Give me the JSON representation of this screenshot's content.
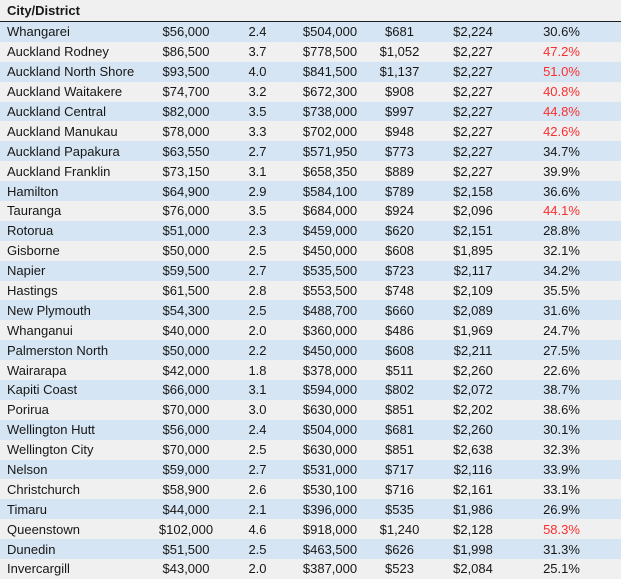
{
  "colors": {
    "band_blue": "#d6e5f3",
    "band_gray": "#f0f0f0",
    "text": "#171717",
    "red_percent": "#fb2e2e",
    "header_border": "#1f1f1f"
  },
  "table": {
    "header_label": "City/District",
    "rows": [
      {
        "city": "Whangarei",
        "values": [
          "$56,000",
          "2.4",
          "$504,000",
          "$681",
          "$2,224"
        ],
        "percent": "30.6%",
        "percent_red": false
      },
      {
        "city": "Auckland Rodney",
        "values": [
          "$86,500",
          "3.7",
          "$778,500",
          "$1,052",
          "$2,227"
        ],
        "percent": "47.2%",
        "percent_red": true
      },
      {
        "city": "Auckland North Shore",
        "values": [
          "$93,500",
          "4.0",
          "$841,500",
          "$1,137",
          "$2,227"
        ],
        "percent": "51.0%",
        "percent_red": true
      },
      {
        "city": "Auckland Waitakere",
        "values": [
          "$74,700",
          "3.2",
          "$672,300",
          "$908",
          "$2,227"
        ],
        "percent": "40.8%",
        "percent_red": true
      },
      {
        "city": "Auckland Central",
        "values": [
          "$82,000",
          "3.5",
          "$738,000",
          "$997",
          "$2,227"
        ],
        "percent": "44.8%",
        "percent_red": true
      },
      {
        "city": "Auckland Manukau",
        "values": [
          "$78,000",
          "3.3",
          "$702,000",
          "$948",
          "$2,227"
        ],
        "percent": "42.6%",
        "percent_red": true
      },
      {
        "city": "Auckland Papakura",
        "values": [
          "$63,550",
          "2.7",
          "$571,950",
          "$773",
          "$2,227"
        ],
        "percent": "34.7%",
        "percent_red": false
      },
      {
        "city": "Auckland Franklin",
        "values": [
          "$73,150",
          "3.1",
          "$658,350",
          "$889",
          "$2,227"
        ],
        "percent": "39.9%",
        "percent_red": false
      },
      {
        "city": "Hamilton",
        "values": [
          "$64,900",
          "2.9",
          "$584,100",
          "$789",
          "$2,158"
        ],
        "percent": "36.6%",
        "percent_red": false
      },
      {
        "city": "Tauranga",
        "values": [
          "$76,000",
          "3.5",
          "$684,000",
          "$924",
          "$2,096"
        ],
        "percent": "44.1%",
        "percent_red": true
      },
      {
        "city": "Rotorua",
        "values": [
          "$51,000",
          "2.3",
          "$459,000",
          "$620",
          "$2,151"
        ],
        "percent": "28.8%",
        "percent_red": false
      },
      {
        "city": "Gisborne",
        "values": [
          "$50,000",
          "2.5",
          "$450,000",
          "$608",
          "$1,895"
        ],
        "percent": "32.1%",
        "percent_red": false
      },
      {
        "city": "Napier",
        "values": [
          "$59,500",
          "2.7",
          "$535,500",
          "$723",
          "$2,117"
        ],
        "percent": "34.2%",
        "percent_red": false
      },
      {
        "city": "Hastings",
        "values": [
          "$61,500",
          "2.8",
          "$553,500",
          "$748",
          "$2,109"
        ],
        "percent": "35.5%",
        "percent_red": false
      },
      {
        "city": "New Plymouth",
        "values": [
          "$54,300",
          "2.5",
          "$488,700",
          "$660",
          "$2,089"
        ],
        "percent": "31.6%",
        "percent_red": false
      },
      {
        "city": "Whanganui",
        "values": [
          "$40,000",
          "2.0",
          "$360,000",
          "$486",
          "$1,969"
        ],
        "percent": "24.7%",
        "percent_red": false
      },
      {
        "city": "Palmerston North",
        "values": [
          "$50,000",
          "2.2",
          "$450,000",
          "$608",
          "$2,211"
        ],
        "percent": "27.5%",
        "percent_red": false
      },
      {
        "city": "Wairarapa",
        "values": [
          "$42,000",
          "1.8",
          "$378,000",
          "$511",
          "$2,260"
        ],
        "percent": "22.6%",
        "percent_red": false
      },
      {
        "city": "Kapiti Coast",
        "values": [
          "$66,000",
          "3.1",
          "$594,000",
          "$802",
          "$2,072"
        ],
        "percent": "38.7%",
        "percent_red": false
      },
      {
        "city": "Porirua",
        "values": [
          "$70,000",
          "3.0",
          "$630,000",
          "$851",
          "$2,202"
        ],
        "percent": "38.6%",
        "percent_red": false
      },
      {
        "city": "Wellington Hutt",
        "values": [
          "$56,000",
          "2.4",
          "$504,000",
          "$681",
          "$2,260"
        ],
        "percent": "30.1%",
        "percent_red": false
      },
      {
        "city": "Wellington City",
        "values": [
          "$70,000",
          "2.5",
          "$630,000",
          "$851",
          "$2,638"
        ],
        "percent": "32.3%",
        "percent_red": false
      },
      {
        "city": "Nelson",
        "values": [
          "$59,000",
          "2.7",
          "$531,000",
          "$717",
          "$2,116"
        ],
        "percent": "33.9%",
        "percent_red": false
      },
      {
        "city": "Christchurch",
        "values": [
          "$58,900",
          "2.6",
          "$530,100",
          "$716",
          "$2,161"
        ],
        "percent": "33.1%",
        "percent_red": false
      },
      {
        "city": "Timaru",
        "values": [
          "$44,000",
          "2.1",
          "$396,000",
          "$535",
          "$1,986"
        ],
        "percent": "26.9%",
        "percent_red": false
      },
      {
        "city": "Queenstown",
        "values": [
          "$102,000",
          "4.6",
          "$918,000",
          "$1,240",
          "$2,128"
        ],
        "percent": "58.3%",
        "percent_red": true
      },
      {
        "city": "Dunedin",
        "values": [
          "$51,500",
          "2.5",
          "$463,500",
          "$626",
          "$1,998"
        ],
        "percent": "31.3%",
        "percent_red": false
      },
      {
        "city": "Invercargill",
        "values": [
          "$43,000",
          "2.0",
          "$387,000",
          "$523",
          "$2,084"
        ],
        "percent": "25.1%",
        "percent_red": false
      }
    ]
  }
}
